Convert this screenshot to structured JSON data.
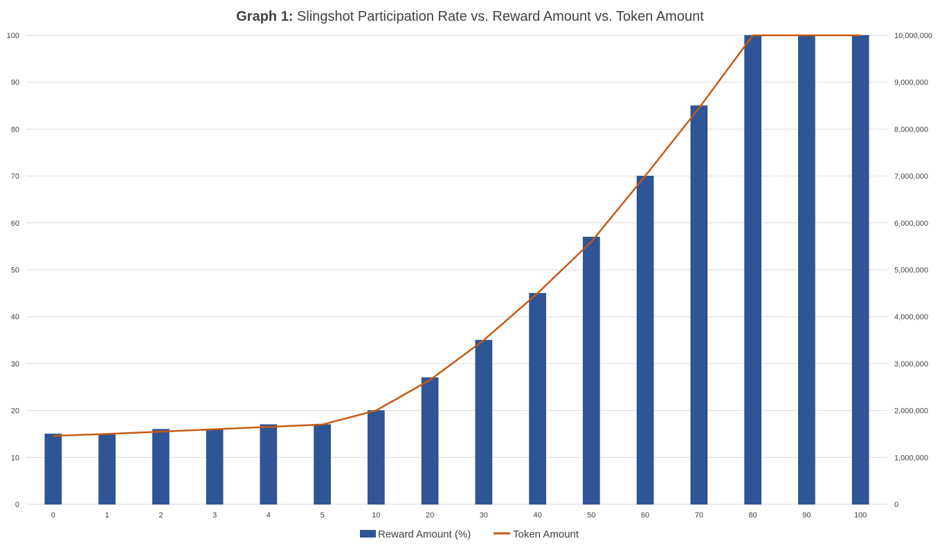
{
  "chart_data": {
    "type": "bar",
    "title_bold": "Graph 1:",
    "title_rest": "Slingshot Participation Rate vs. Reward Amount vs. Token Amount",
    "categories": [
      "0",
      "1",
      "2",
      "3",
      "4",
      "5",
      "10",
      "20",
      "30",
      "40",
      "50",
      "60",
      "70",
      "80",
      "90",
      "100"
    ],
    "series": [
      {
        "name": "Reward Amount (%)",
        "kind": "bar",
        "axis": "left",
        "color": "#2F5597",
        "values": [
          15,
          15,
          16,
          16,
          17,
          17,
          20,
          27,
          35,
          45,
          57,
          70,
          85,
          100,
          100,
          100
        ]
      },
      {
        "name": "Token Amount",
        "kind": "line",
        "axis": "right",
        "color": "#C55A11",
        "values": [
          1460000,
          1500000,
          1550000,
          1600000,
          1650000,
          1700000,
          2000000,
          2650000,
          3500000,
          4500000,
          5600000,
          7000000,
          8450000,
          10000000,
          10000000,
          10000000
        ]
      }
    ],
    "y_left": {
      "min": 0,
      "max": 100,
      "ticks": [
        "0",
        "10",
        "20",
        "30",
        "40",
        "50",
        "60",
        "70",
        "80",
        "90",
        "100"
      ]
    },
    "y_right": {
      "min": 0,
      "max": 10000000,
      "ticks": [
        "0",
        "1,000,000",
        "2,000,000",
        "3,000,000",
        "4,000,000",
        "5,000,000",
        "6,000,000",
        "7,000,000",
        "8,000,000",
        "9,000,000",
        "10,000,000"
      ]
    },
    "grid": true,
    "legend_position": "bottom-center",
    "legend": [
      "Reward Amount (%)",
      "Token Amount"
    ],
    "gridline_color": "#D9D9D9",
    "text_color": "#404040"
  }
}
